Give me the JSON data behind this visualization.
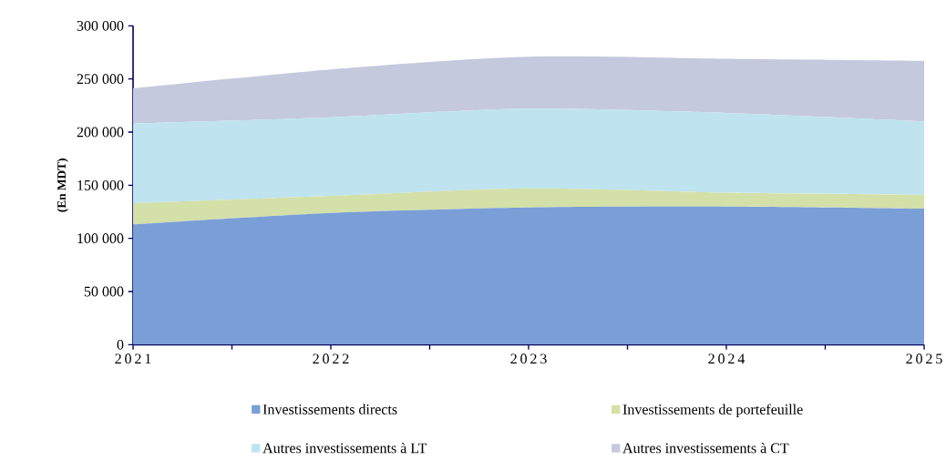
{
  "chart_data": {
    "type": "area",
    "stacked": true,
    "ylabel": "(En MDT)",
    "x": [
      2021,
      2022,
      2023,
      2024,
      2025
    ],
    "series": [
      {
        "name": "Investissements directs",
        "color": "#7a9fd6",
        "values": [
          113000,
          124000,
          129000,
          130000,
          128000
        ]
      },
      {
        "name": "Investissements de portefeuille",
        "color": "#d3e0a8",
        "values": [
          20000,
          16000,
          18000,
          13000,
          13000
        ]
      },
      {
        "name": "Autres investissements à LT",
        "color": "#bfe3ef",
        "values": [
          75000,
          74000,
          75000,
          75000,
          69000
        ]
      },
      {
        "name": "Autres investissements à CT",
        "color": "#c4c9de",
        "values": [
          33000,
          45000,
          49000,
          51000,
          57000
        ]
      }
    ],
    "xlim": [
      2021,
      2025
    ],
    "ylim": [
      0,
      300000
    ],
    "xticks": [
      2021,
      {
        "value": 2021.5,
        "label": null
      },
      2022,
      {
        "value": 2022.5,
        "label": null
      },
      2023,
      {
        "value": 2023.5,
        "label": null
      },
      2024,
      {
        "value": 2024.5,
        "label": null
      },
      2025
    ],
    "yticks": [
      {
        "value": 0,
        "label": "0"
      },
      {
        "value": 50000,
        "label": "50 000"
      },
      {
        "value": 100000,
        "label": "100 000"
      },
      {
        "value": 150000,
        "label": "150 000"
      },
      {
        "value": 200000,
        "label": "200 000"
      },
      {
        "value": 250000,
        "label": "250 000"
      },
      {
        "value": 300000,
        "label": "300 000"
      }
    ],
    "grid": false,
    "legend": "bottom"
  }
}
